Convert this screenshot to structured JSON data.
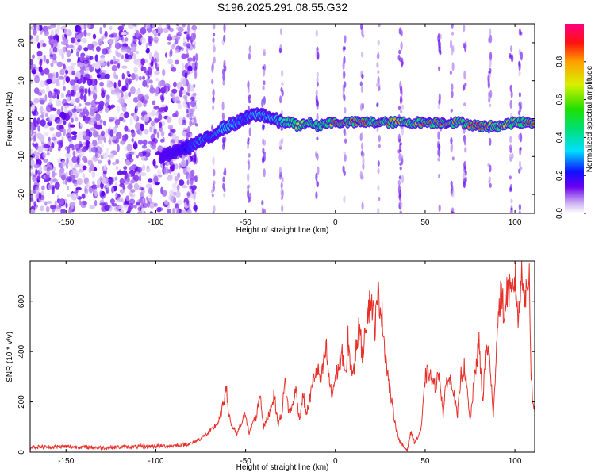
{
  "chart_data": [
    {
      "type": "heatmap",
      "title": "S196.2025.291.08.55.G32",
      "xlabel": "Height of straight line (km)",
      "ylabel": "Frequency (Hz)",
      "xlim": [
        -170,
        111
      ],
      "ylim": [
        -25,
        25
      ],
      "x_ticks": [
        -150,
        -100,
        -50,
        0,
        50,
        100
      ],
      "x_tick_labels": [
        "-150",
        "-100",
        "-50",
        "0",
        "50",
        "100"
      ],
      "y_ticks": [
        -20,
        -10,
        0,
        10,
        20
      ],
      "y_tick_labels": [
        "-20",
        "-10",
        "0",
        "10",
        "20"
      ],
      "colorbar": {
        "label": "Normalized spectral amplitude",
        "range": [
          0,
          1
        ],
        "ticks": [
          0.0,
          0.2,
          0.4,
          0.6,
          0.8
        ],
        "tick_labels": [
          "0.0",
          "0.2",
          "0.4",
          "0.6",
          "0.8"
        ]
      },
      "ridge": {
        "x": [
          -97,
          -90,
          -85,
          -80,
          -75,
          -70,
          -65,
          -60,
          -55,
          -50,
          -45,
          -40,
          -35,
          -30,
          -25,
          -20,
          -15,
          -10,
          -5,
          0,
          10,
          20,
          30,
          40,
          50,
          60,
          70,
          80,
          90,
          100,
          111
        ],
        "freq": [
          -10,
          -9,
          -8,
          -7,
          -6,
          -5,
          -3,
          -2,
          -1,
          0,
          1,
          1,
          0,
          -1,
          -1,
          -2,
          -1,
          -2,
          -1,
          -1,
          -1,
          -1,
          -1,
          -1,
          -1,
          -1,
          -1,
          -2,
          -2,
          -1,
          -1
        ],
        "amplitude": [
          0.15,
          0.18,
          0.2,
          0.25,
          0.3,
          0.25,
          0.3,
          0.35,
          0.3,
          0.25,
          0.35,
          0.3,
          0.35,
          0.4,
          0.45,
          0.7,
          0.55,
          0.5,
          0.55,
          0.9,
          0.85,
          0.9,
          0.85,
          0.7,
          0.9,
          0.85,
          0.8,
          0.9,
          0.75,
          0.8,
          0.9
        ]
      }
    },
    {
      "type": "line",
      "title": "",
      "xlabel": "Height of straight line (km)",
      "ylabel": "SNR (10 * v/v)",
      "xlim": [
        -170,
        111
      ],
      "ylim": [
        0,
        760
      ],
      "x_ticks": [
        -150,
        -100,
        -50,
        0,
        50,
        100
      ],
      "x_tick_labels": [
        "-150",
        "-100",
        "-50",
        "0",
        "50",
        "100"
      ],
      "y_ticks": [
        0,
        200,
        400,
        600
      ],
      "y_tick_labels": [
        "0",
        "200",
        "400",
        "600"
      ],
      "series": [
        {
          "name": "SNR",
          "color": "#e8302a",
          "x": [
            -170,
            -150,
            -130,
            -110,
            -90,
            -80,
            -75,
            -70,
            -65,
            -62,
            -61,
            -60,
            -58,
            -55,
            -52,
            -50,
            -48,
            -46,
            -44,
            -42,
            -40,
            -38,
            -36,
            -34,
            -32,
            -30,
            -28,
            -26,
            -24,
            -22,
            -20,
            -18,
            -16,
            -14,
            -12,
            -10,
            -8,
            -6,
            -5,
            -4,
            -2,
            0,
            2,
            4,
            6,
            7,
            8,
            10,
            12,
            14,
            15,
            16,
            18,
            20,
            22,
            24,
            26,
            27,
            28,
            30,
            32,
            34,
            36,
            38,
            40,
            42,
            44,
            46,
            48,
            50,
            52,
            55,
            58,
            60,
            62,
            65,
            68,
            70,
            72,
            75,
            78,
            80,
            82,
            84,
            86,
            88,
            90,
            92,
            94,
            96,
            98,
            100,
            102,
            104,
            106,
            108,
            109,
            110,
            111
          ],
          "y": [
            20,
            22,
            18,
            22,
            25,
            35,
            55,
            80,
            120,
            200,
            290,
            180,
            110,
            70,
            120,
            160,
            70,
            120,
            140,
            240,
            100,
            130,
            180,
            230,
            110,
            150,
            280,
            160,
            180,
            250,
            130,
            230,
            150,
            220,
            300,
            330,
            280,
            380,
            410,
            320,
            220,
            300,
            340,
            390,
            290,
            450,
            370,
            300,
            450,
            520,
            330,
            480,
            560,
            610,
            500,
            630,
            540,
            460,
            380,
            260,
            170,
            90,
            40,
            20,
            10,
            80,
            40,
            60,
            100,
            300,
            320,
            260,
            310,
            150,
            290,
            280,
            140,
            310,
            340,
            120,
            330,
            430,
            200,
            420,
            370,
            130,
            480,
            640,
            550,
            660,
            610,
            700,
            520,
            740,
            600,
            720,
            310,
            200,
            160
          ]
        }
      ]
    }
  ]
}
